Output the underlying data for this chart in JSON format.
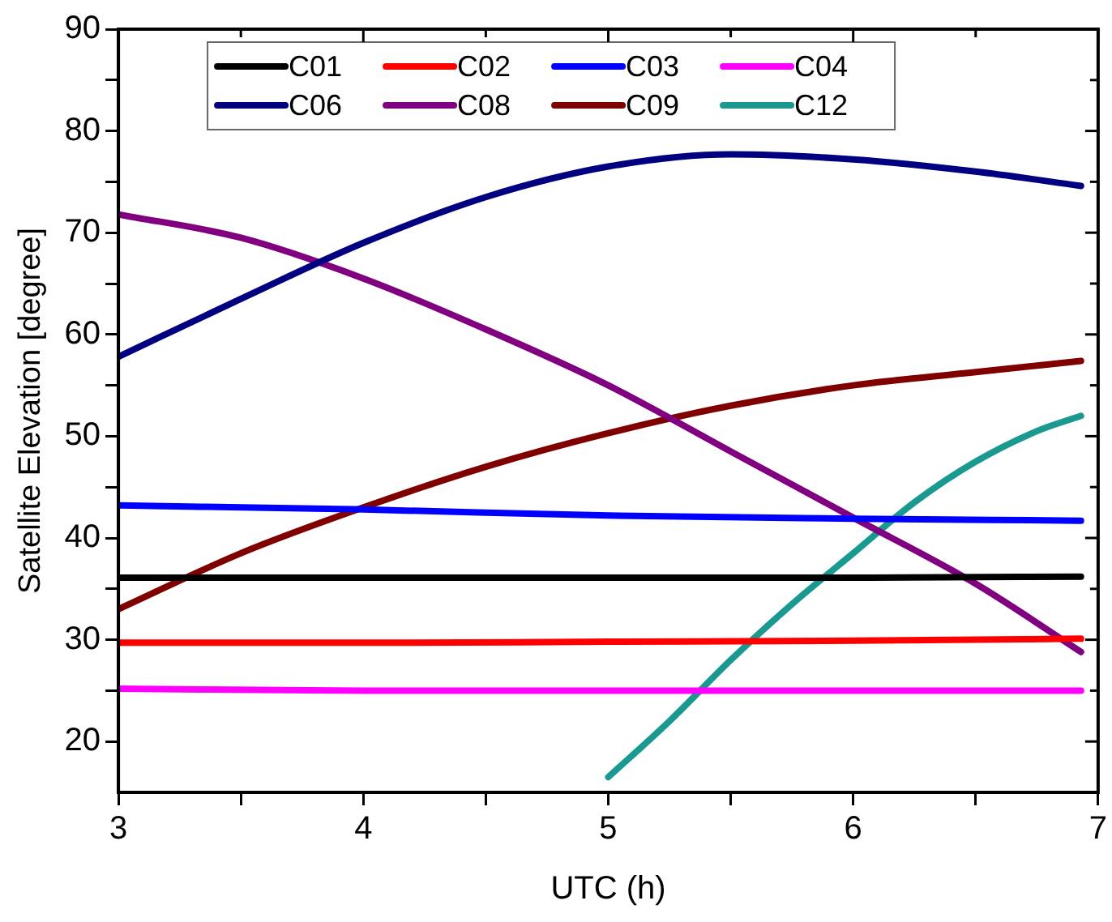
{
  "chart_data": {
    "type": "line",
    "xlabel": "UTC (h)",
    "ylabel": "Satellite Elevation [degree]",
    "xlim": [
      3,
      7
    ],
    "ylim": [
      15,
      90
    ],
    "xticks": [
      3,
      {
        "value": 3.5,
        "label": null
      },
      4,
      {
        "value": 4.5,
        "label": null
      },
      5,
      {
        "value": 5.5,
        "label": null
      },
      6,
      {
        "value": 6.5,
        "label": null
      },
      7
    ],
    "yticks": [
      20,
      {
        "value": 25,
        "label": null
      },
      30,
      {
        "value": 35,
        "label": null
      },
      40,
      {
        "value": 45,
        "label": null
      },
      50,
      {
        "value": 55,
        "label": null
      },
      60,
      {
        "value": 65,
        "label": null
      },
      70,
      {
        "value": 75,
        "label": null
      },
      80,
      {
        "value": 85,
        "label": null
      },
      90
    ],
    "grid": false,
    "legend": "top",
    "marker": "none",
    "line_style": "solid",
    "series": [
      {
        "name": "C01",
        "color": "#000000",
        "x": [
          3,
          4,
          5,
          6,
          6.93
        ],
        "values": [
          36.1,
          36.1,
          36.1,
          36.1,
          36.2
        ]
      },
      {
        "name": "C02",
        "color": "#ff0000",
        "x": [
          3,
          4,
          5,
          6,
          6.93
        ],
        "values": [
          29.7,
          29.7,
          29.8,
          29.9,
          30.1
        ]
      },
      {
        "name": "C03",
        "color": "#0000ff",
        "x": [
          3,
          4,
          5,
          6,
          6.93
        ],
        "values": [
          43.2,
          42.8,
          42.2,
          41.9,
          41.7
        ]
      },
      {
        "name": "C04",
        "color": "#ff00ff",
        "x": [
          3,
          4,
          5,
          6,
          6.93
        ],
        "values": [
          25.2,
          25.0,
          25.0,
          25.0,
          25.0
        ]
      },
      {
        "name": "C06",
        "color": "#000080",
        "x": [
          3,
          3.5,
          4,
          4.5,
          5,
          5.5,
          6,
          6.5,
          6.93
        ],
        "values": [
          57.8,
          63.5,
          69,
          73.5,
          76.5,
          77.7,
          77.2,
          76,
          74.6
        ]
      },
      {
        "name": "C08",
        "color": "#800080",
        "x": [
          3,
          3.5,
          4,
          4.5,
          5,
          5.5,
          6,
          6.5,
          6.93
        ],
        "values": [
          71.8,
          69.5,
          65.5,
          60.5,
          55,
          48.5,
          42,
          35.5,
          28.8
        ]
      },
      {
        "name": "C09",
        "color": "#800000",
        "x": [
          3,
          3.5,
          4,
          4.5,
          5,
          5.5,
          6,
          6.5,
          6.93
        ],
        "values": [
          33,
          38.5,
          43,
          47,
          50.3,
          53,
          55,
          56.3,
          57.4
        ]
      },
      {
        "name": "C12",
        "color": "#1a9990",
        "x": [
          5,
          5.25,
          5.5,
          5.75,
          6,
          6.25,
          6.5,
          6.75,
          6.93
        ],
        "values": [
          16.5,
          22,
          28,
          33.5,
          38.5,
          43.5,
          47.5,
          50.5,
          52
        ]
      }
    ]
  }
}
